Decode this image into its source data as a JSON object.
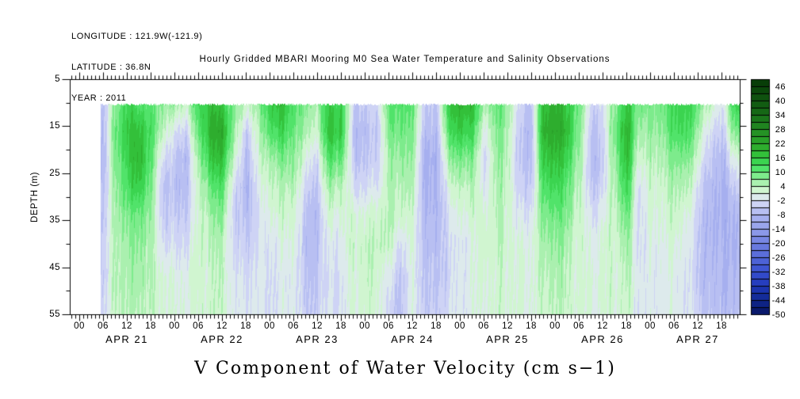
{
  "header": {
    "longitude": "LONGITUDE : 121.9W(-121.9)",
    "latitude": "LATITUDE : 36.8N",
    "year": "YEAR : 2011"
  },
  "title": "Hourly Gridded MBARI Mooring M0 Sea Water Temperature and Salinity Observations",
  "caption": "V Component of Water Velocity (cm s−1)",
  "colors": {
    "background": "#ffffff",
    "axis": "#000000",
    "text": "#000000"
  },
  "axes": {
    "y_label": "DEPTH (m)",
    "y_major_ticks": [
      5,
      15,
      25,
      35,
      45,
      55
    ],
    "y_minor_ticks": [
      10,
      20,
      30,
      40,
      50
    ],
    "x_hour_cycle": [
      "00",
      "06",
      "12",
      "18"
    ],
    "x_days": [
      {
        "name": "APR 21"
      },
      {
        "name": "APR 22"
      },
      {
        "name": "APR 23"
      },
      {
        "name": "APR 24"
      },
      {
        "name": "APR 25"
      },
      {
        "name": "APR 26"
      },
      {
        "name": "APR 27"
      }
    ]
  },
  "colorbar": {
    "top_value": 49,
    "bottom_value": -50,
    "cell_step": 3,
    "n_cells": 33,
    "labels": [
      46,
      40,
      34,
      28,
      22,
      16,
      10,
      4,
      -2,
      -8,
      -14,
      -20,
      -26,
      -32,
      -38,
      -44,
      -50
    ]
  },
  "palette": [
    {
      "v": 49,
      "c": "#063906"
    },
    {
      "v": 43,
      "c": "#0d4d0d"
    },
    {
      "v": 37,
      "c": "#136113"
    },
    {
      "v": 31,
      "c": "#1d7d1d"
    },
    {
      "v": 25,
      "c": "#279927"
    },
    {
      "v": 19,
      "c": "#30b430"
    },
    {
      "v": 16,
      "c": "#36cb44"
    },
    {
      "v": 13,
      "c": "#3fdd5c"
    },
    {
      "v": 10,
      "c": "#63e878"
    },
    {
      "v": 7,
      "c": "#96eea0"
    },
    {
      "v": 4,
      "c": "#bef2be"
    },
    {
      "v": 1,
      "c": "#e2f8e2"
    },
    {
      "v": -2,
      "c": "#d8dcf6"
    },
    {
      "v": -5,
      "c": "#c4caf3"
    },
    {
      "v": -8,
      "c": "#acb4f0"
    },
    {
      "v": -14,
      "c": "#94a0ea"
    },
    {
      "v": -20,
      "c": "#6e7ee0"
    },
    {
      "v": -26,
      "c": "#5468d8"
    },
    {
      "v": -32,
      "c": "#3850d0"
    },
    {
      "v": -38,
      "c": "#2038b8"
    },
    {
      "v": -44,
      "c": "#102890"
    },
    {
      "v": -50,
      "c": "#081460"
    }
  ],
  "chart_data": {
    "type": "heatmap",
    "title": "Hourly Gridded MBARI Mooring M0 Sea Water Temperature and Salinity Observations",
    "variable": "V Component of Water Velocity",
    "units": "cm s-1",
    "xlabel": "Time (APR 21 - APR 27, 2011, hourly ticks, 6-hour labels)",
    "ylabel": "DEPTH (m)",
    "y_range_m": [
      5,
      55
    ],
    "data_depth_range_m": [
      10,
      55
    ],
    "value_range": [
      -50,
      49
    ],
    "level_step": 3,
    "time_start": "2011-04-21 00:00",
    "time_step_hours": 3,
    "data_start_hour": 5.4,
    "depths_m": [
      10,
      16,
      22,
      28,
      34,
      40,
      47,
      55
    ],
    "values_cm_s": [
      null,
      null,
      [
        -7,
        -8,
        -8,
        -7,
        -6,
        -5,
        -5,
        -4
      ],
      [
        8,
        10,
        9,
        7,
        6,
        5,
        5,
        4
      ],
      [
        14,
        16,
        14,
        12,
        8,
        6,
        5,
        4
      ],
      [
        12,
        18,
        20,
        16,
        10,
        8,
        6,
        5
      ],
      [
        10,
        12,
        10,
        8,
        6,
        5,
        4,
        3
      ],
      [
        8,
        4,
        -2,
        -5,
        -4,
        -2,
        2,
        2
      ],
      [
        6,
        -2,
        -6,
        -7,
        -5,
        -3,
        0,
        1
      ],
      [
        4,
        -3,
        -7,
        -6,
        -4,
        -2,
        1,
        1
      ],
      [
        14,
        10,
        6,
        3,
        2,
        2,
        2,
        2
      ],
      [
        18,
        20,
        16,
        10,
        6,
        4,
        3,
        3
      ],
      [
        16,
        22,
        18,
        12,
        8,
        5,
        4,
        3
      ],
      [
        8,
        6,
        2,
        -3,
        -5,
        -4,
        -2,
        -1
      ],
      [
        4,
        -4,
        -7,
        -8,
        -6,
        -4,
        -2,
        -1
      ],
      [
        6,
        3,
        1,
        -2,
        -3,
        -3,
        -2,
        -1
      ],
      [
        16,
        12,
        6,
        3,
        1,
        -1,
        -2,
        -2
      ],
      [
        18,
        14,
        8,
        4,
        2,
        0,
        -1,
        -1
      ],
      [
        12,
        10,
        8,
        5,
        3,
        1,
        0,
        0
      ],
      [
        8,
        5,
        0,
        -4,
        -6,
        -7,
        -6,
        -5
      ],
      [
        6,
        3,
        -2,
        -5,
        -7,
        -6,
        -5,
        -4
      ],
      [
        16,
        18,
        12,
        6,
        2,
        -1,
        -2,
        -2
      ],
      [
        14,
        16,
        10,
        4,
        1,
        -1,
        -2,
        -2
      ],
      [
        -4,
        -6,
        -5,
        -2,
        2,
        3,
        2,
        1
      ],
      [
        -5,
        -7,
        -6,
        -3,
        1,
        3,
        3,
        2
      ],
      [
        -3,
        -5,
        -4,
        -1,
        3,
        4,
        3,
        2
      ],
      [
        10,
        8,
        5,
        4,
        4,
        3,
        -2,
        -4
      ],
      [
        12,
        10,
        7,
        5,
        3,
        -2,
        -5,
        -6
      ],
      [
        10,
        8,
        6,
        4,
        2,
        1,
        0,
        0
      ],
      [
        -4,
        -6,
        -8,
        -8,
        -7,
        -6,
        -5,
        -4
      ],
      [
        -6,
        -8,
        -10,
        -9,
        -8,
        -7,
        -6,
        -5
      ],
      [
        16,
        12,
        6,
        1,
        -2,
        -3,
        -3,
        -2
      ],
      [
        20,
        16,
        9,
        4,
        1,
        -1,
        -1,
        -1
      ],
      [
        18,
        14,
        8,
        4,
        2,
        0,
        0,
        0
      ],
      [
        6,
        0,
        -3,
        -1,
        2,
        3,
        2,
        1
      ],
      [
        10,
        8,
        6,
        5,
        4,
        3,
        2,
        2
      ],
      [
        8,
        6,
        5,
        4,
        3,
        3,
        2,
        2
      ],
      [
        -4,
        -6,
        -7,
        -5,
        -2,
        0,
        1,
        1
      ],
      [
        -5,
        -7,
        -6,
        -4,
        -1,
        1,
        1,
        1
      ],
      [
        18,
        20,
        16,
        12,
        8,
        6,
        4,
        3
      ],
      [
        20,
        22,
        18,
        14,
        10,
        7,
        5,
        4
      ],
      [
        16,
        18,
        14,
        10,
        8,
        5,
        4,
        3
      ],
      [
        10,
        8,
        6,
        4,
        3,
        2,
        2,
        2
      ],
      [
        -3,
        -6,
        -7,
        -5,
        -2,
        0,
        1,
        1
      ],
      [
        -2,
        -4,
        -5,
        -3,
        0,
        2,
        2,
        1
      ],
      [
        8,
        10,
        8,
        6,
        4,
        3,
        2,
        2
      ],
      [
        16,
        20,
        18,
        14,
        10,
        6,
        4,
        3
      ],
      [
        10,
        6,
        2,
        -2,
        -3,
        -2,
        -1,
        -1
      ],
      [
        8,
        6,
        4,
        2,
        1,
        0,
        -1,
        -1
      ],
      [
        10,
        8,
        5,
        3,
        2,
        1,
        0,
        0
      ],
      [
        14,
        12,
        8,
        5,
        3,
        1,
        0,
        0
      ],
      [
        16,
        14,
        9,
        5,
        2,
        0,
        -1,
        -1
      ],
      [
        10,
        6,
        2,
        -2,
        -4,
        -5,
        -5,
        -4
      ],
      [
        4,
        -2,
        -5,
        -7,
        -8,
        -8,
        -7,
        -6
      ],
      [
        -2,
        -5,
        -8,
        -9,
        -9,
        -8,
        -8,
        -7
      ],
      [
        14,
        8,
        0,
        -5,
        -8,
        -9,
        -8,
        -7
      ]
    ]
  }
}
